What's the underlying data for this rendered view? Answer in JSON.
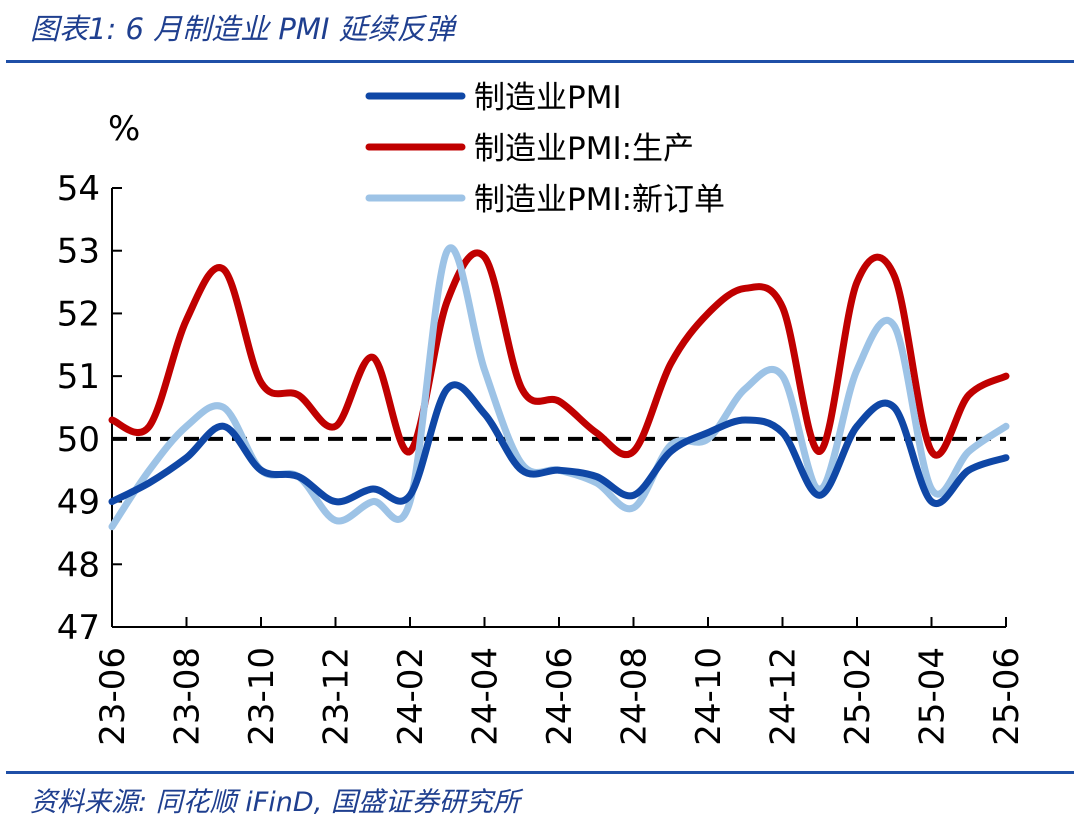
{
  "header": {
    "title": "图表1:  6 月制造业 PMI 延续反弹"
  },
  "footer": {
    "source": "资料来源:  同花顺 iFinD,  国盛证券研究所"
  },
  "chart_data": {
    "type": "line",
    "unit_label": "%",
    "ylim": [
      47,
      54
    ],
    "y_ticks": [
      47,
      48,
      49,
      50,
      51,
      52,
      53,
      54
    ],
    "x": [
      "23-06",
      "23-07",
      "23-08",
      "23-09",
      "23-10",
      "23-11",
      "23-12",
      "24-01",
      "24-02",
      "24-03",
      "24-04",
      "24-05",
      "24-06",
      "24-07",
      "24-08",
      "24-09",
      "24-10",
      "24-11",
      "24-12",
      "25-01",
      "25-02",
      "25-03",
      "25-04",
      "25-05",
      "25-06"
    ],
    "x_tick_labels": [
      "23-06",
      "23-08",
      "23-10",
      "23-12",
      "24-02",
      "24-04",
      "24-06",
      "24-08",
      "24-10",
      "24-12",
      "25-02",
      "25-04",
      "25-06"
    ],
    "reference_line": {
      "value": 50,
      "style": "dashed",
      "color": "#000000"
    },
    "legend_position": "top-right",
    "series": [
      {
        "name": "制造业PMI",
        "color": "#0f47a6",
        "values": [
          49.0,
          49.3,
          49.7,
          50.2,
          49.5,
          49.4,
          49.0,
          49.2,
          49.1,
          50.8,
          50.4,
          49.5,
          49.5,
          49.4,
          49.1,
          49.8,
          50.1,
          50.3,
          50.1,
          49.1,
          50.2,
          50.5,
          49.0,
          49.5,
          49.7
        ]
      },
      {
        "name": "制造业PMI:生产",
        "color": "#c00000",
        "values": [
          50.3,
          50.2,
          51.9,
          52.7,
          50.9,
          50.7,
          50.2,
          51.3,
          49.8,
          52.2,
          52.9,
          50.8,
          50.6,
          50.1,
          49.8,
          51.2,
          52.0,
          52.4,
          52.1,
          49.8,
          52.5,
          52.6,
          49.8,
          50.7,
          51.0
        ]
      },
      {
        "name": "制造业PMI:新订单",
        "color": "#9dc3e6",
        "values": [
          48.6,
          49.5,
          50.2,
          50.5,
          49.5,
          49.4,
          48.7,
          49.0,
          49.0,
          53.0,
          51.1,
          49.6,
          49.5,
          49.3,
          48.9,
          49.9,
          50.0,
          50.8,
          51.0,
          49.2,
          51.1,
          51.8,
          49.2,
          49.8,
          50.2
        ]
      }
    ]
  }
}
